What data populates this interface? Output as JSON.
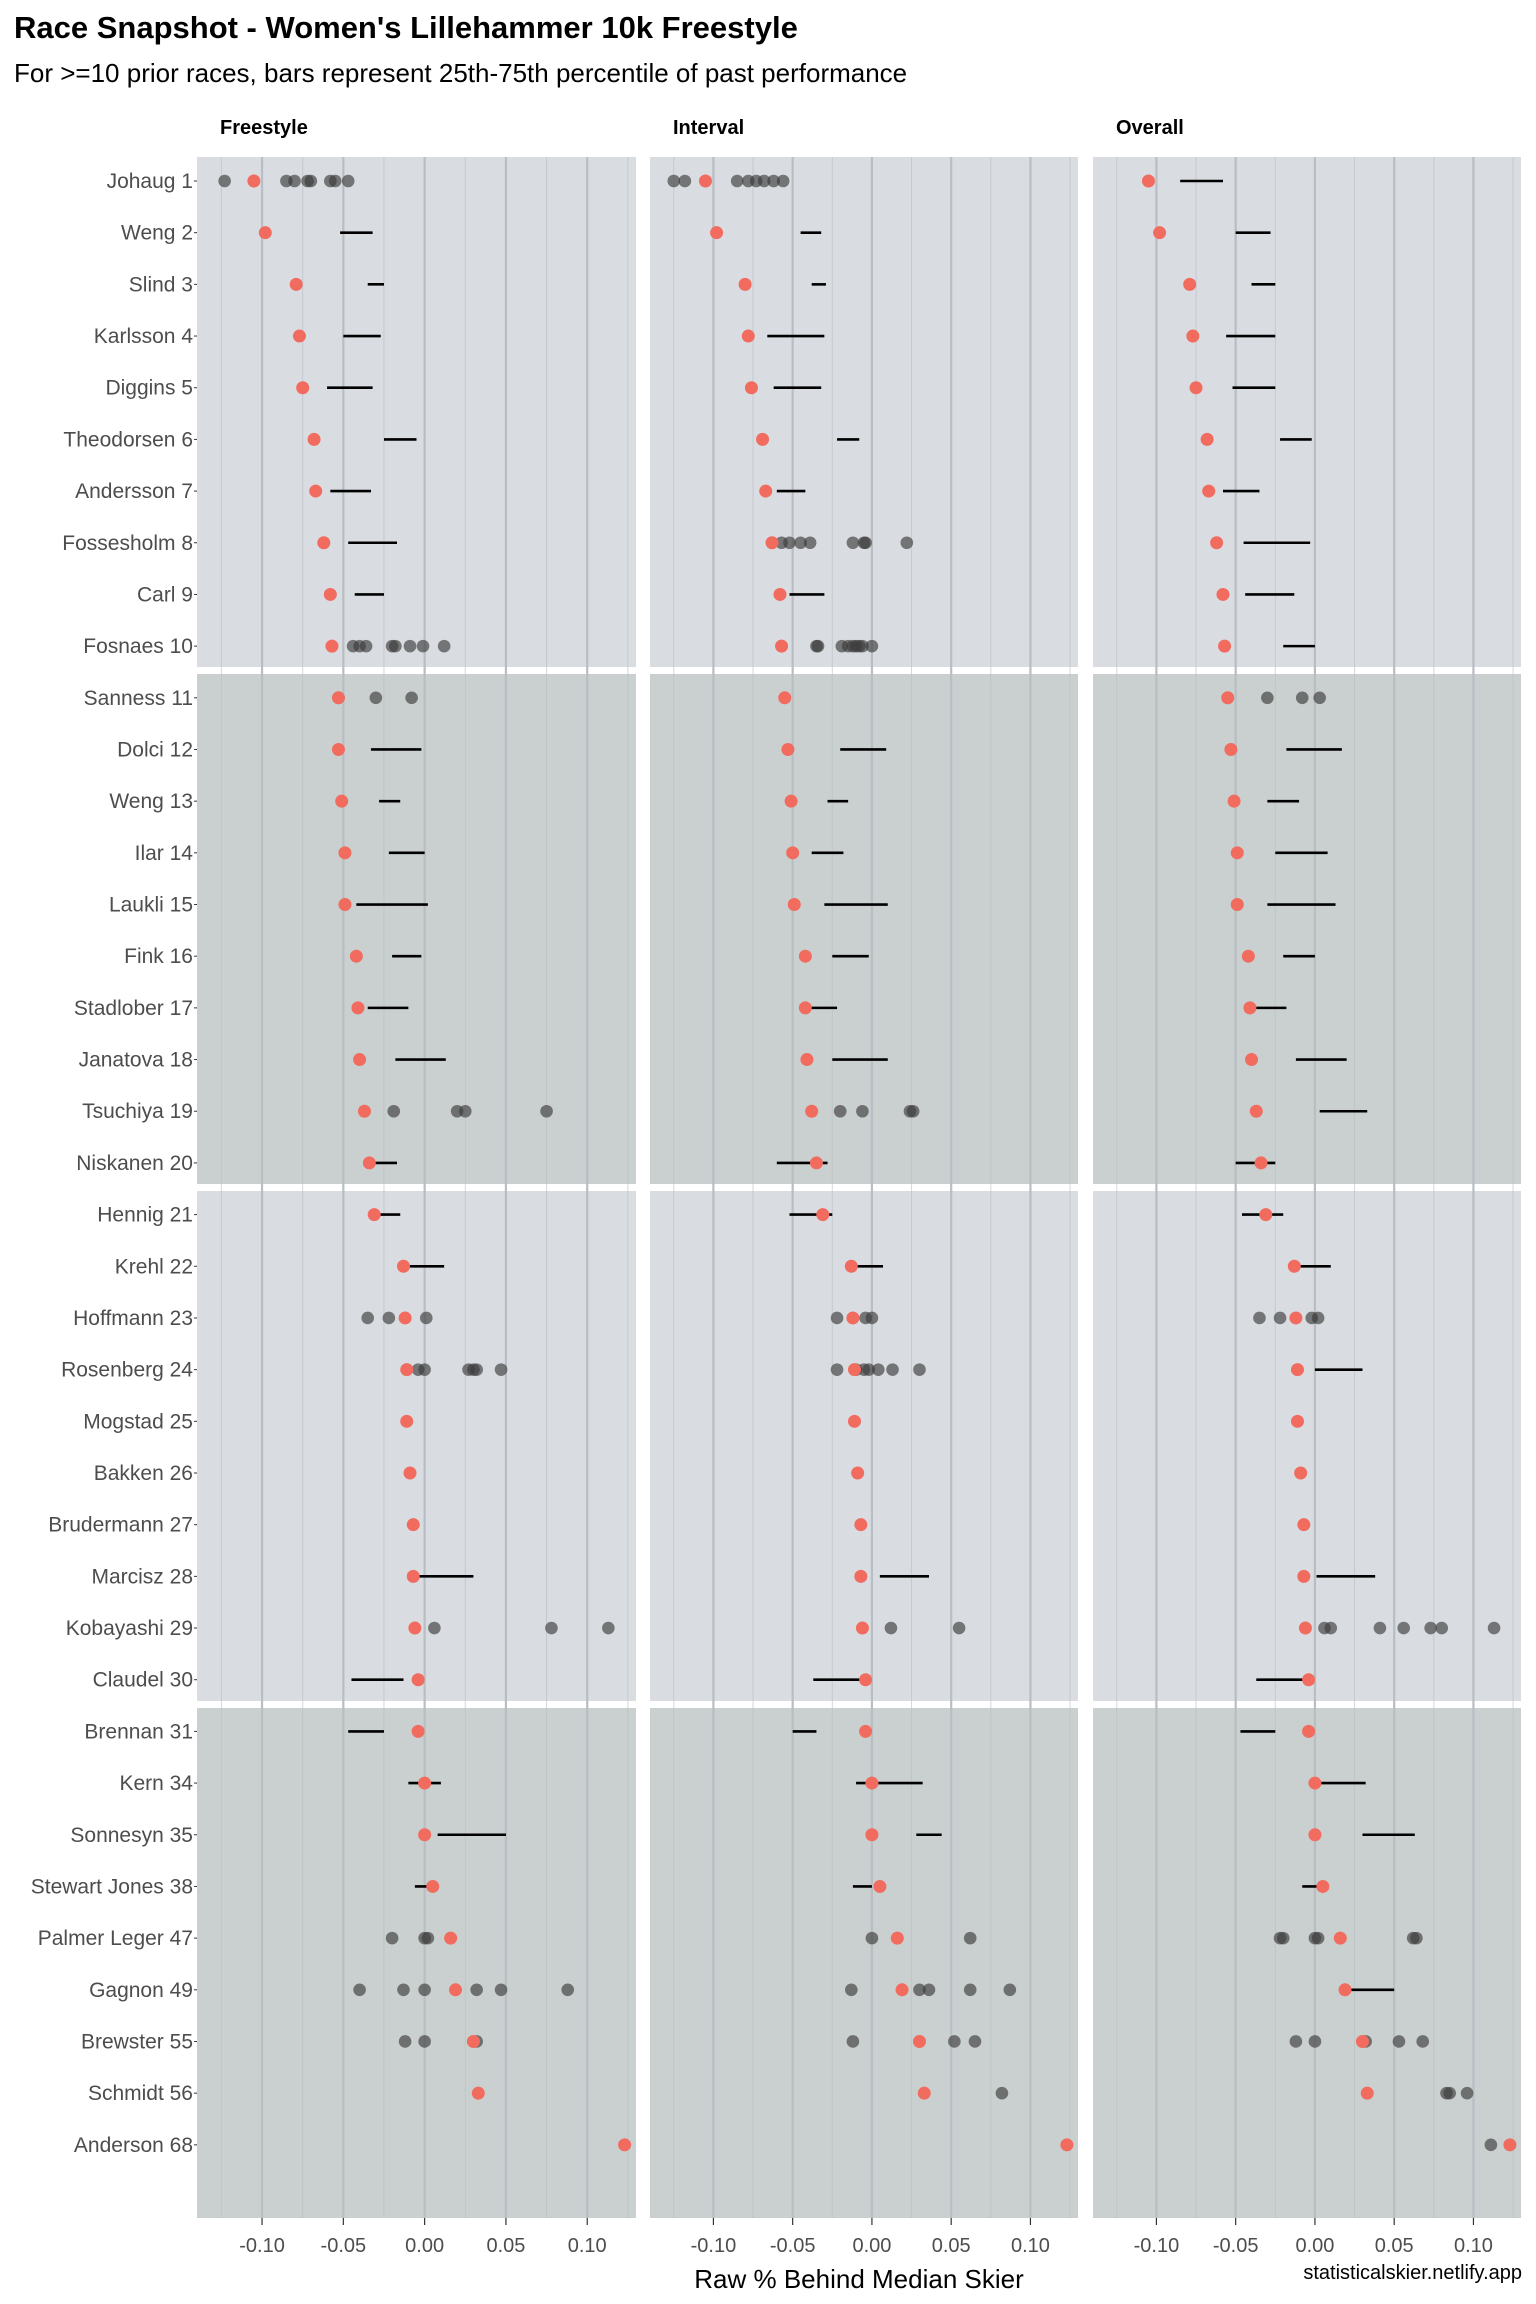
{
  "title": "Race Snapshot -  Women's Lillehammer 10k Freestyle",
  "subtitle": "For >=10 prior races, bars represent 25th-75th percentile of past performance",
  "caption": "statisticalskier.netlify.app",
  "colors": {
    "panel_light": "#d9dce1",
    "panel_dark": "#c9d0cf",
    "grid": "#b8bec4",
    "current_point": "#f26b5f",
    "past_point": "#3c3c3c",
    "bar": "#000000"
  },
  "chart_data": {
    "type": "dot-range",
    "facets": [
      "Freestyle",
      "Interval",
      "Overall"
    ],
    "xlabel": "Raw % Behind Median Skier",
    "ylabel": "",
    "xlim": [
      -0.14,
      0.13
    ],
    "x_ticks": [
      -0.1,
      -0.05,
      0.0,
      0.05,
      0.1
    ],
    "x_tick_labels": [
      "-0.10",
      "-0.05",
      "0.00",
      "0.05",
      "0.10"
    ],
    "grid": true,
    "legend": "none",
    "skiers": [
      {
        "label": "Johaug 1",
        "current": {
          "freestyle": -0.105,
          "interval": -0.105,
          "overall": -0.105
        },
        "ranges": {
          "overall": [
            -0.085,
            -0.058
          ]
        },
        "past": {
          "freestyle": [
            -0.123,
            -0.085,
            -0.08,
            -0.072,
            -0.07,
            -0.058,
            -0.055,
            -0.047
          ],
          "interval": [
            -0.125,
            -0.118,
            -0.085,
            -0.078,
            -0.073,
            -0.068,
            -0.062,
            -0.056
          ]
        }
      },
      {
        "label": "Weng 2",
        "current": {
          "freestyle": -0.098,
          "interval": -0.098,
          "overall": -0.098
        },
        "ranges": {
          "freestyle": [
            -0.052,
            -0.032
          ],
          "interval": [
            -0.045,
            -0.032
          ],
          "overall": [
            -0.05,
            -0.028
          ]
        }
      },
      {
        "label": "Slind 3",
        "current": {
          "freestyle": -0.079,
          "interval": -0.08,
          "overall": -0.079
        },
        "ranges": {
          "freestyle": [
            -0.035,
            -0.025
          ],
          "interval": [
            -0.038,
            -0.029
          ],
          "overall": [
            -0.04,
            -0.025
          ]
        }
      },
      {
        "label": "Karlsson 4",
        "current": {
          "freestyle": -0.077,
          "interval": -0.078,
          "overall": -0.077
        },
        "ranges": {
          "freestyle": [
            -0.05,
            -0.027
          ],
          "interval": [
            -0.066,
            -0.03
          ],
          "overall": [
            -0.056,
            -0.025
          ]
        }
      },
      {
        "label": "Diggins 5",
        "current": {
          "freestyle": -0.075,
          "interval": -0.076,
          "overall": -0.075
        },
        "ranges": {
          "freestyle": [
            -0.06,
            -0.032
          ],
          "interval": [
            -0.062,
            -0.032
          ],
          "overall": [
            -0.052,
            -0.025
          ]
        }
      },
      {
        "label": "Theodorsen 6",
        "current": {
          "freestyle": -0.068,
          "interval": -0.069,
          "overall": -0.068
        },
        "ranges": {
          "freestyle": [
            -0.025,
            -0.005
          ],
          "interval": [
            -0.022,
            -0.008
          ],
          "overall": [
            -0.022,
            -0.002
          ]
        }
      },
      {
        "label": "Andersson 7",
        "current": {
          "freestyle": -0.067,
          "interval": -0.067,
          "overall": -0.067
        },
        "ranges": {
          "freestyle": [
            -0.058,
            -0.033
          ],
          "interval": [
            -0.06,
            -0.042
          ],
          "overall": [
            -0.058,
            -0.035
          ]
        }
      },
      {
        "label": "Fossesholm 8",
        "current": {
          "freestyle": -0.062,
          "interval": -0.063,
          "overall": -0.062
        },
        "ranges": {
          "freestyle": [
            -0.047,
            -0.017
          ],
          "overall": [
            -0.045,
            -0.003
          ]
        },
        "past": {
          "interval": [
            -0.063,
            -0.057,
            -0.052,
            -0.045,
            -0.039,
            -0.012,
            -0.005,
            -0.004,
            0.022
          ]
        }
      },
      {
        "label": "Carl 9",
        "current": {
          "freestyle": -0.058,
          "interval": -0.058,
          "overall": -0.058
        },
        "ranges": {
          "freestyle": [
            -0.043,
            -0.025
          ],
          "interval": [
            -0.052,
            -0.03
          ],
          "overall": [
            -0.044,
            -0.013
          ]
        }
      },
      {
        "label": "Fosnaes 10",
        "current": {
          "freestyle": -0.057,
          "interval": -0.057,
          "overall": -0.057
        },
        "ranges": {
          "overall": [
            -0.02,
            0.0
          ]
        },
        "past": {
          "freestyle": [
            -0.044,
            -0.04,
            -0.036,
            -0.02,
            -0.018,
            -0.009,
            -0.001,
            0.012
          ],
          "interval": [
            -0.035,
            -0.034,
            -0.019,
            -0.015,
            -0.012,
            -0.01,
            -0.008,
            -0.006,
            0.0
          ]
        }
      },
      {
        "label": "Sanness 11",
        "current": {
          "freestyle": -0.053,
          "interval": -0.055,
          "overall": -0.055
        },
        "past": {
          "freestyle": [
            -0.053,
            -0.03,
            -0.008
          ],
          "overall": [
            -0.055,
            -0.03,
            -0.008,
            0.003
          ]
        }
      },
      {
        "label": "Dolci 12",
        "current": {
          "freestyle": -0.053,
          "interval": -0.053,
          "overall": -0.053
        },
        "ranges": {
          "freestyle": [
            -0.033,
            -0.002
          ],
          "interval": [
            -0.02,
            0.009
          ],
          "overall": [
            -0.018,
            0.017
          ]
        }
      },
      {
        "label": "Weng 13",
        "current": {
          "freestyle": -0.051,
          "interval": -0.051,
          "overall": -0.051
        },
        "ranges": {
          "freestyle": [
            -0.028,
            -0.015
          ],
          "interval": [
            -0.028,
            -0.015
          ],
          "overall": [
            -0.03,
            -0.01
          ]
        }
      },
      {
        "label": "Ilar 14",
        "current": {
          "freestyle": -0.049,
          "interval": -0.05,
          "overall": -0.049
        },
        "ranges": {
          "freestyle": [
            -0.022,
            0.0
          ],
          "interval": [
            -0.038,
            -0.018
          ],
          "overall": [
            -0.025,
            0.008
          ]
        }
      },
      {
        "label": "Laukli 15",
        "current": {
          "freestyle": -0.049,
          "interval": -0.049,
          "overall": -0.049
        },
        "ranges": {
          "freestyle": [
            -0.042,
            0.002
          ],
          "interval": [
            -0.03,
            0.01
          ],
          "overall": [
            -0.03,
            0.013
          ]
        }
      },
      {
        "label": "Fink 16",
        "current": {
          "freestyle": -0.042,
          "interval": -0.042,
          "overall": -0.042
        },
        "ranges": {
          "freestyle": [
            -0.02,
            -0.002
          ],
          "interval": [
            -0.025,
            -0.002
          ],
          "overall": [
            -0.02,
            0.0
          ]
        }
      },
      {
        "label": "Stadlober 17",
        "current": {
          "freestyle": -0.041,
          "interval": -0.042,
          "overall": -0.041
        },
        "ranges": {
          "freestyle": [
            -0.035,
            -0.01
          ],
          "interval": [
            -0.04,
            -0.022
          ],
          "overall": [
            -0.04,
            -0.018
          ]
        }
      },
      {
        "label": "Janatova 18",
        "current": {
          "freestyle": -0.04,
          "interval": -0.041,
          "overall": -0.04
        },
        "ranges": {
          "freestyle": [
            -0.018,
            0.013
          ],
          "interval": [
            -0.025,
            0.01
          ],
          "overall": [
            -0.012,
            0.02
          ]
        }
      },
      {
        "label": "Tsuchiya 19",
        "current": {
          "freestyle": -0.037,
          "interval": -0.038,
          "overall": -0.037
        },
        "ranges": {
          "overall": [
            0.003,
            0.033
          ]
        },
        "past": {
          "freestyle": [
            -0.019,
            0.02,
            0.025,
            0.075
          ],
          "interval": [
            -0.02,
            -0.006,
            0.024,
            0.026
          ]
        }
      },
      {
        "label": "Niskanen 20",
        "current": {
          "freestyle": -0.034,
          "interval": -0.035,
          "overall": -0.034
        },
        "ranges": {
          "freestyle": [
            -0.033,
            -0.017
          ],
          "interval": [
            -0.06,
            -0.028
          ],
          "overall": [
            -0.05,
            -0.025
          ]
        }
      },
      {
        "label": "Hennig 21",
        "current": {
          "freestyle": -0.031,
          "interval": -0.031,
          "overall": -0.031
        },
        "ranges": {
          "freestyle": [
            -0.03,
            -0.015
          ],
          "interval": [
            -0.052,
            -0.025
          ],
          "overall": [
            -0.046,
            -0.02
          ]
        }
      },
      {
        "label": "Krehl 22",
        "current": {
          "freestyle": -0.013,
          "interval": -0.013,
          "overall": -0.013
        },
        "ranges": {
          "freestyle": [
            -0.011,
            0.012
          ],
          "interval": [
            -0.013,
            0.007
          ],
          "overall": [
            -0.012,
            0.01
          ]
        }
      },
      {
        "label": "Hoffmann 23",
        "current": {
          "freestyle": -0.012,
          "interval": -0.012,
          "overall": -0.012
        },
        "past": {
          "freestyle": [
            -0.035,
            -0.022,
            0.001
          ],
          "interval": [
            -0.022,
            -0.004,
            0.0
          ],
          "overall": [
            -0.035,
            -0.022,
            -0.002,
            0.002
          ]
        }
      },
      {
        "label": "Rosenberg 24",
        "current": {
          "freestyle": -0.011,
          "interval": -0.011,
          "overall": -0.011
        },
        "ranges": {
          "overall": [
            0.0,
            0.03
          ]
        },
        "past": {
          "freestyle": [
            -0.004,
            0.0,
            0.027,
            0.03,
            0.032,
            0.047
          ],
          "interval": [
            -0.022,
            -0.01,
            -0.005,
            -0.002,
            0.004,
            0.013,
            0.03
          ]
        }
      },
      {
        "label": "Mogstad 25",
        "current": {
          "freestyle": -0.011,
          "interval": -0.011,
          "overall": -0.011
        }
      },
      {
        "label": "Bakken 26",
        "current": {
          "freestyle": -0.009,
          "interval": -0.009,
          "overall": -0.009
        }
      },
      {
        "label": "Brudermann 27",
        "current": {
          "freestyle": -0.007,
          "interval": -0.007,
          "overall": -0.007
        }
      },
      {
        "label": "Marcisz 28",
        "current": {
          "freestyle": -0.007,
          "interval": -0.007,
          "overall": -0.007
        },
        "ranges": {
          "freestyle": [
            -0.005,
            0.03
          ],
          "interval": [
            0.005,
            0.036
          ],
          "overall": [
            0.001,
            0.038
          ]
        }
      },
      {
        "label": "Kobayashi 29",
        "current": {
          "freestyle": -0.006,
          "interval": -0.006,
          "overall": -0.006
        },
        "past": {
          "freestyle": [
            0.006,
            0.078,
            0.113
          ],
          "interval": [
            0.012,
            0.055
          ],
          "overall": [
            0.006,
            0.01,
            0.041,
            0.056,
            0.073,
            0.08,
            0.113
          ]
        }
      },
      {
        "label": "Claudel 30",
        "current": {
          "freestyle": -0.004,
          "interval": -0.004,
          "overall": -0.004
        },
        "ranges": {
          "freestyle": [
            -0.045,
            -0.013
          ],
          "interval": [
            -0.037,
            -0.007
          ],
          "overall": [
            -0.037,
            -0.005
          ]
        }
      },
      {
        "label": "Brennan 31",
        "current": {
          "freestyle": -0.004,
          "interval": -0.004,
          "overall": -0.004
        },
        "ranges": {
          "freestyle": [
            -0.047,
            -0.025
          ],
          "interval": [
            -0.05,
            -0.035
          ],
          "overall": [
            -0.047,
            -0.025
          ]
        }
      },
      {
        "label": "Kern 34",
        "current": {
          "freestyle": 0.0,
          "interval": 0.0,
          "overall": 0.0
        },
        "ranges": {
          "freestyle": [
            -0.01,
            0.01
          ],
          "interval": [
            -0.01,
            0.032
          ],
          "overall": [
            0.0,
            0.032
          ]
        }
      },
      {
        "label": "Sonnesyn 35",
        "current": {
          "freestyle": 0.0,
          "interval": 0.0,
          "overall": 0.0
        },
        "ranges": {
          "freestyle": [
            0.008,
            0.05
          ],
          "interval": [
            0.028,
            0.044
          ],
          "overall": [
            0.03,
            0.063
          ]
        }
      },
      {
        "label": "Stewart Jones 38",
        "current": {
          "freestyle": 0.005,
          "interval": 0.005,
          "overall": 0.005
        },
        "ranges": {
          "freestyle": [
            -0.006,
            0.004
          ],
          "interval": [
            -0.012,
            0.0
          ],
          "overall": [
            -0.008,
            0.002
          ]
        }
      },
      {
        "label": "Palmer Leger 47",
        "current": {
          "freestyle": 0.016,
          "interval": 0.016,
          "overall": 0.016
        },
        "past": {
          "freestyle": [
            -0.02,
            0.0,
            0.002
          ],
          "interval": [
            0.0,
            0.062
          ],
          "overall": [
            -0.022,
            -0.02,
            0.0,
            0.002,
            0.062,
            0.064
          ]
        }
      },
      {
        "label": "Gagnon 49",
        "current": {
          "freestyle": 0.019,
          "interval": 0.019,
          "overall": 0.019
        },
        "ranges": {
          "overall": [
            0.02,
            0.05
          ]
        },
        "past": {
          "freestyle": [
            -0.04,
            -0.013,
            0.0,
            0.032,
            0.047,
            0.088
          ],
          "interval": [
            -0.013,
            0.03,
            0.036,
            0.062,
            0.087
          ]
        }
      },
      {
        "label": "Brewster 55",
        "current": {
          "freestyle": 0.03,
          "interval": 0.03,
          "overall": 0.03
        },
        "past": {
          "freestyle": [
            -0.012,
            0.0,
            0.032
          ],
          "interval": [
            -0.012,
            0.052,
            0.065
          ],
          "overall": [
            -0.012,
            0.0,
            0.032,
            0.053,
            0.068
          ]
        }
      },
      {
        "label": "Schmidt 56",
        "current": {
          "freestyle": 0.033,
          "interval": 0.033,
          "overall": 0.033
        },
        "past": {
          "interval": [
            0.082
          ],
          "overall": [
            0.083,
            0.085,
            0.096
          ]
        }
      },
      {
        "label": "Anderson 68",
        "current": {
          "freestyle": 0.123,
          "interval": 0.123,
          "overall": 0.123
        },
        "past": {
          "overall": [
            0.111
          ]
        }
      }
    ]
  }
}
